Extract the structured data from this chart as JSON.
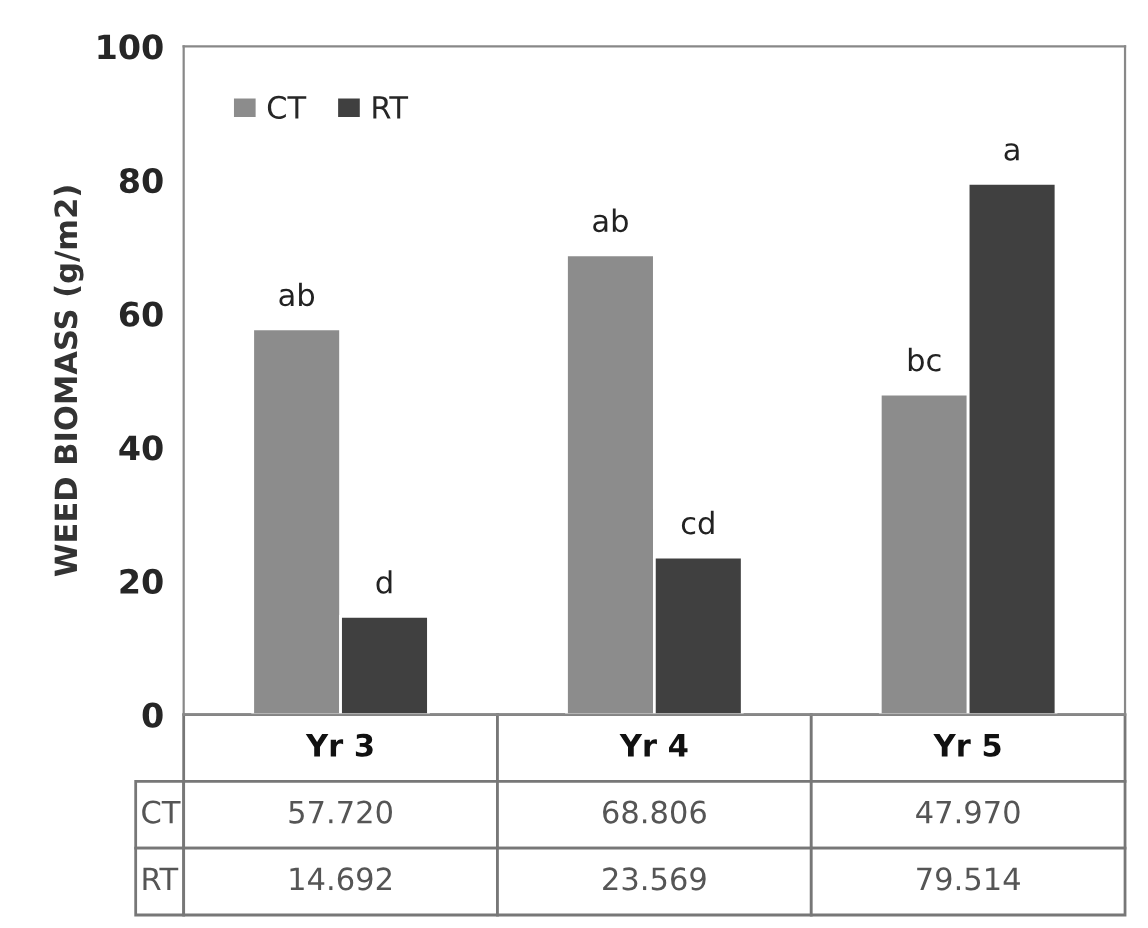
{
  "chart_data": {
    "type": "bar",
    "ylabel": "WEED BIOMASS (g/m2)",
    "categories": [
      "Yr 3",
      "Yr 4",
      "Yr 5"
    ],
    "series": [
      {
        "name": "CT",
        "color": "#8c8c8c",
        "values": [
          57.72,
          68.806,
          47.97
        ],
        "value_labels": [
          "57.720",
          "68.806",
          "47.970"
        ]
      },
      {
        "name": "RT",
        "color": "#404040",
        "values": [
          14.692,
          23.569,
          79.514
        ],
        "value_labels": [
          "14.692",
          "23.569",
          "79.514"
        ]
      }
    ],
    "ylim": [
      0,
      100
    ],
    "yticks": [
      0,
      20,
      40,
      60,
      80,
      100
    ],
    "grid": false,
    "legend": "top left",
    "annotations": [
      {
        "text": "ab",
        "x": "Yr 3",
        "y": 57.72
      },
      {
        "text": "d",
        "x": "Yr 3",
        "y": 14.692
      },
      {
        "text": "ab",
        "x": "Yr 4",
        "y": 68.806
      },
      {
        "text": "cd",
        "x": "Yr 4",
        "y": 23.569
      },
      {
        "text": "bc",
        "x": "Yr 5",
        "y": 47.97
      },
      {
        "text": "a",
        "x": "Yr 5",
        "y": 79.514
      }
    ]
  }
}
